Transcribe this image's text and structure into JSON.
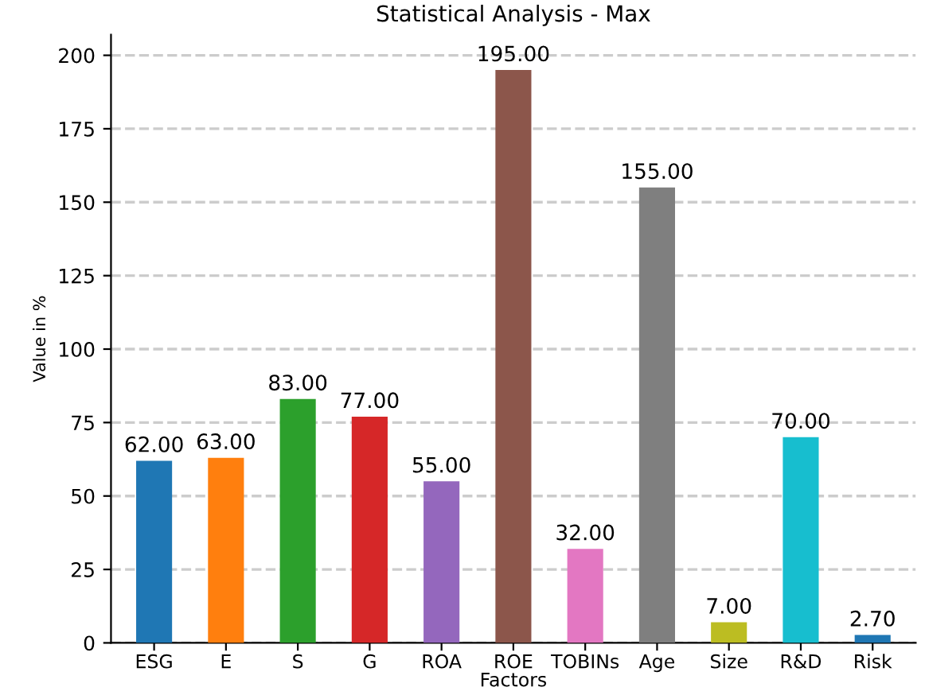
{
  "chart_data": {
    "type": "bar",
    "title": "Statistical Analysis - Max",
    "xlabel": "Factors",
    "ylabel": "Value in %",
    "categories": [
      "ESG",
      "E",
      "S",
      "G",
      "ROA",
      "ROE",
      "TOBINs",
      "Age",
      "Size",
      "R&D",
      "Risk"
    ],
    "values": [
      62,
      63,
      83,
      77,
      55,
      195,
      32,
      155,
      7,
      70,
      2.7
    ],
    "colors": [
      "#1f77b4",
      "#ff7f0e",
      "#2ca02c",
      "#d62728",
      "#9467bd",
      "#8c564b",
      "#e377c2",
      "#7f7f7f",
      "#bcbd22",
      "#17becf",
      "#1f77b4"
    ],
    "value_labels": [
      "62.00",
      "63.00",
      "83.00",
      "77.00",
      "55.00",
      "195.00",
      "32.00",
      "155.00",
      "7.00",
      "70.00",
      "2.70"
    ],
    "ylim": [
      0,
      207
    ],
    "yticks": [
      0,
      25,
      50,
      75,
      100,
      125,
      150,
      175,
      200
    ],
    "grid": "y"
  }
}
